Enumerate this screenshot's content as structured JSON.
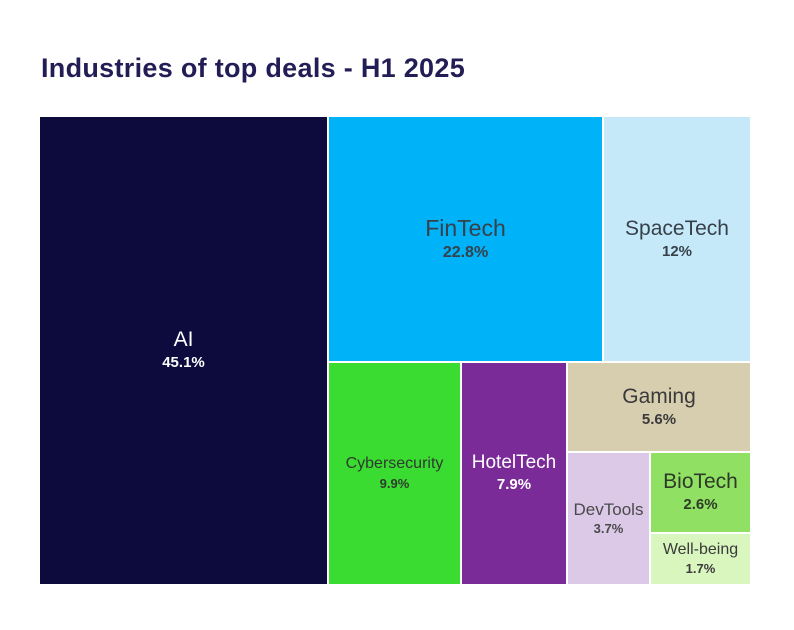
{
  "page": {
    "background": "#ffffff"
  },
  "title": "Industries of top deals - H1 2025",
  "title_color": "#221e55",
  "chart_data": {
    "type": "treemap",
    "title": "Industries of top deals - H1 2025",
    "unit": "%",
    "legend": "none",
    "items": [
      {
        "label": "AI",
        "value": 45.1,
        "value_label": "45.1%",
        "color": "#0d0b3e",
        "text_color": "#ffffff"
      },
      {
        "label": "FinTech",
        "value": 22.8,
        "value_label": "22.8%",
        "color": "#00b2f7",
        "text_color": "#37414a"
      },
      {
        "label": "SpaceTech",
        "value": 12,
        "value_label": "12%",
        "color": "#c6e9fa",
        "text_color": "#37414a"
      },
      {
        "label": "Cybersecurity",
        "value": 9.9,
        "value_label": "9.9%",
        "color": "#3bdc31",
        "text_color": "#2e3a2e"
      },
      {
        "label": "HotelTech",
        "value": 7.9,
        "value_label": "7.9%",
        "color": "#7b2b97",
        "text_color": "#ffffff"
      },
      {
        "label": "Gaming",
        "value": 5.6,
        "value_label": "5.6%",
        "color": "#d7cdaf",
        "text_color": "#3a3a3a"
      },
      {
        "label": "DevTools",
        "value": 3.7,
        "value_label": "3.7%",
        "color": "#dcc9e8",
        "text_color": "#4a4a4a"
      },
      {
        "label": "BioTech",
        "value": 2.6,
        "value_label": "2.6%",
        "color": "#90e163",
        "text_color": "#2e3a28"
      },
      {
        "label": "Well-being",
        "value": 1.7,
        "value_label": "1.7%",
        "color": "#d9f6bf",
        "text_color": "#3a3a3a"
      }
    ]
  }
}
